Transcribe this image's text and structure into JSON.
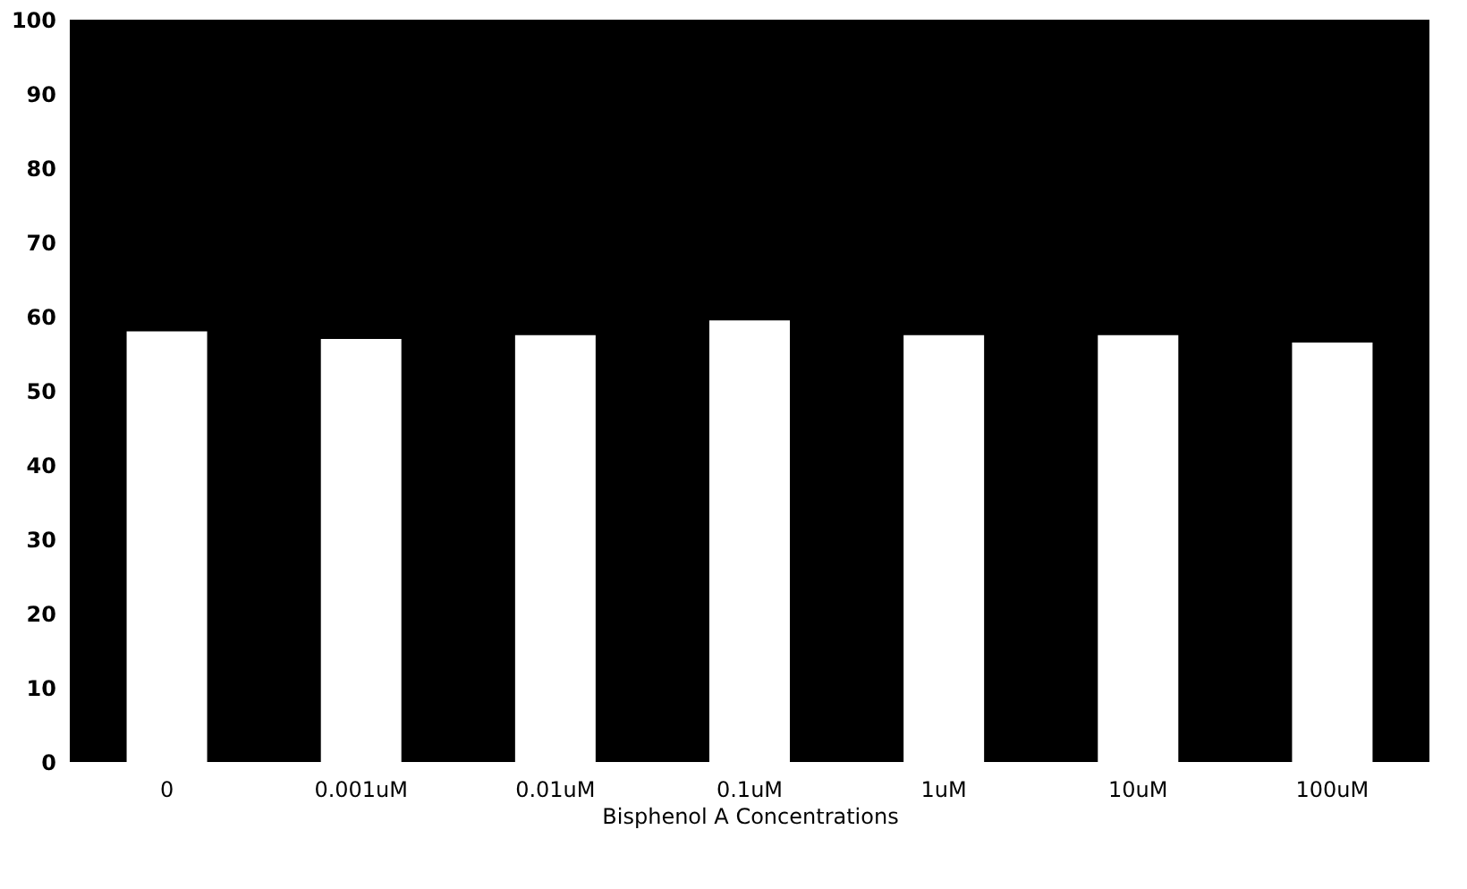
{
  "chart_data": {
    "type": "bar",
    "xlabel": "Bisphenol A Concentrations",
    "categories": [
      "0",
      "0.001uM",
      "0.01uM",
      "0.1uM",
      "1uM",
      "10uM",
      "100uM"
    ],
    "values": [
      58,
      57,
      57.5,
      59.5,
      57.5,
      57.5,
      56.5
    ],
    "color": "#ffffff",
    "ylim": [
      0,
      100
    ],
    "yticks": [
      0,
      10,
      20,
      30,
      40,
      50,
      60,
      70,
      80,
      90,
      100
    ],
    "grid": false
  }
}
